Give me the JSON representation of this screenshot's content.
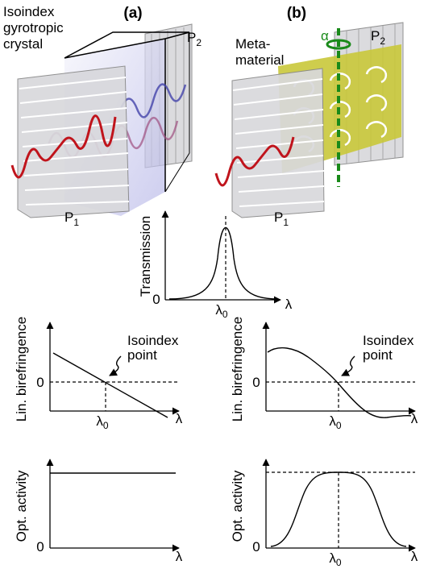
{
  "panels": [
    {
      "label": "(a)",
      "caption_lines": [
        "Isoindex",
        "gyrotropic",
        "crystal"
      ],
      "polarizer_back": {
        "letter": "P",
        "sub": "2"
      },
      "polarizer_front": {
        "letter": "P",
        "sub": "1"
      }
    },
    {
      "label": "(b)",
      "caption_lines": [
        "Meta-",
        "material"
      ],
      "axis_symbol": "α",
      "polarizer_back": {
        "letter": "P",
        "sub": "2"
      },
      "polarizer_front": {
        "letter": "P",
        "sub": "1"
      }
    }
  ],
  "transmission_plot": {
    "y_label": "Transmission",
    "zero": "0",
    "x_mark": {
      "base": "λ",
      "sub": "0"
    },
    "x_label": "λ"
  },
  "plots": [
    {
      "y_label": "Lin. birefringence",
      "zero": "0",
      "annotation_lines": [
        "Isoindex",
        "point"
      ],
      "x_mark": {
        "base": "λ",
        "sub": "0"
      },
      "x_label": "λ"
    },
    {
      "y_label": "Lin. birefringence",
      "zero": "0",
      "annotation_lines": [
        "Isoindex",
        "point"
      ],
      "x_mark": {
        "base": "λ",
        "sub": "0"
      },
      "x_label": "λ"
    },
    {
      "y_label": "Opt. activity",
      "zero": "0",
      "x_label": "λ"
    },
    {
      "y_label": "Opt. activity",
      "zero": "0",
      "x_mark": {
        "base": "λ",
        "sub": "0"
      },
      "x_label": "λ"
    }
  ]
}
